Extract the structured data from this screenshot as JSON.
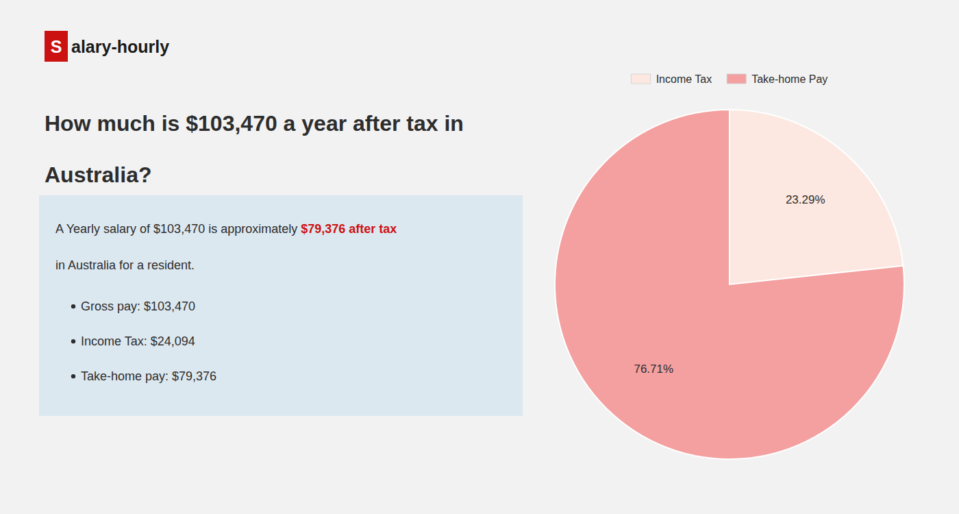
{
  "chart_data": {
    "type": "pie",
    "title": "How much is $103,470 a year after tax in Australia?",
    "categories": [
      "Income Tax",
      "Take-home Pay"
    ],
    "values": [
      23.29,
      76.71
    ],
    "value_labels": [
      "23.29%",
      "76.71%"
    ],
    "colors": [
      "#fce8e0",
      "#f4a0a0"
    ],
    "data_labels": true,
    "legend": "top",
    "annotations": [
      "S",
      "alary-hourly",
      "A Yearly salary of $103,470 is approximately ",
      "$79,376 after tax",
      "in Australia for a resident.",
      "Gross pay: $103,470",
      "Income Tax: $24,094",
      "Take-home pay: $79,376"
    ]
  }
}
